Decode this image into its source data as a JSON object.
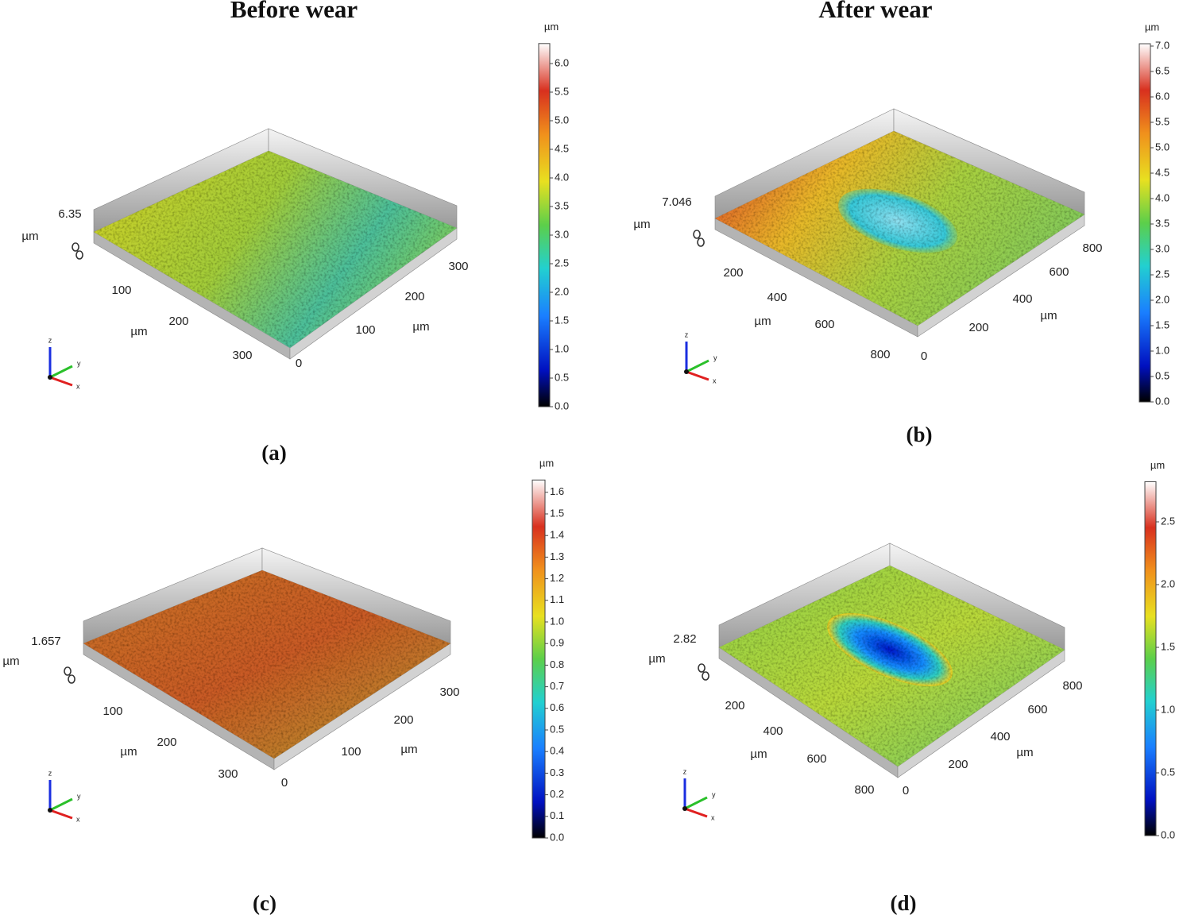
{
  "header": {
    "before": "Before wear",
    "after": "After wear"
  },
  "panels": [
    {
      "label": "(a)",
      "z_max": "6.35",
      "z_unit": "µm",
      "x_unit": "µm",
      "y_unit": "µm",
      "x_ticks": [
        "100",
        "200",
        "300"
      ],
      "y_ticks": [
        "0",
        "100",
        "200",
        "300"
      ],
      "colorbar": {
        "unit": "µm",
        "ticks": [
          "0.0",
          "0.5",
          "1.0",
          "1.5",
          "2.0",
          "2.5",
          "3.0",
          "3.5",
          "4.0",
          "4.5",
          "5.0",
          "5.5",
          "6.0"
        ]
      }
    },
    {
      "label": "(b)",
      "z_max": "7.046",
      "z_unit": "µm",
      "x_unit": "µm",
      "y_unit": "µm",
      "x_ticks": [
        "200",
        "400",
        "600",
        "800"
      ],
      "y_ticks": [
        "0",
        "200",
        "400",
        "600",
        "800"
      ],
      "colorbar": {
        "unit": "µm",
        "ticks": [
          "0.0",
          "0.5",
          "1.0",
          "1.5",
          "2.0",
          "2.5",
          "3.0",
          "3.5",
          "4.0",
          "4.5",
          "5.0",
          "5.5",
          "6.0",
          "6.5",
          "7.0"
        ]
      }
    },
    {
      "label": "(c)",
      "z_max": "1.657",
      "z_unit": "µm",
      "x_unit": "µm",
      "y_unit": "µm",
      "x_ticks": [
        "100",
        "200",
        "300"
      ],
      "y_ticks": [
        "0",
        "100",
        "200",
        "300"
      ],
      "colorbar": {
        "unit": "µm",
        "ticks": [
          "0.0",
          "0.1",
          "0.2",
          "0.3",
          "0.4",
          "0.5",
          "0.6",
          "0.7",
          "0.8",
          "0.9",
          "1.0",
          "1.1",
          "1.2",
          "1.3",
          "1.4",
          "1.5",
          "1.6"
        ]
      }
    },
    {
      "label": "(d)",
      "z_max": "2.82",
      "z_unit": "µm",
      "x_unit": "µm",
      "y_unit": "µm",
      "x_ticks": [
        "200",
        "400",
        "600",
        "800"
      ],
      "y_ticks": [
        "0",
        "200",
        "400",
        "600",
        "800"
      ],
      "colorbar": {
        "unit": "µm",
        "ticks": [
          "0.0",
          "0.5",
          "1.0",
          "1.5",
          "2.0",
          "2.5"
        ]
      }
    }
  ],
  "axis_triad": {
    "z": "z",
    "y": "y",
    "x": "x"
  }
}
